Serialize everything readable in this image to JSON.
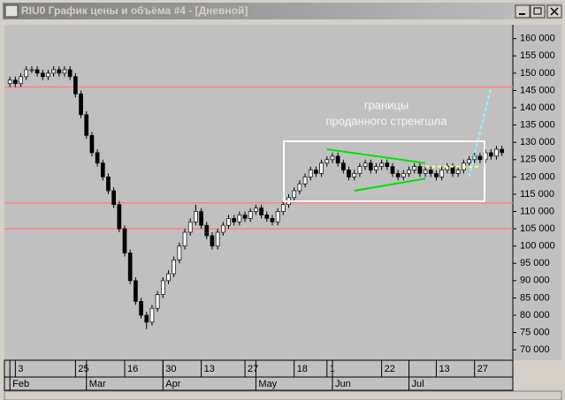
{
  "window": {
    "title": "RIU0 График цены и объёма #4 - [Дневной]"
  },
  "chart_data": {
    "type": "candlestick",
    "open": [
      147000,
      148000,
      147000,
      149000,
      151000,
      151000,
      150000,
      149000,
      150000,
      151000,
      150000,
      151000,
      149000,
      144000,
      138000,
      132000,
      127000,
      124000,
      120000,
      116000,
      112000,
      105000,
      98000,
      90000,
      84000,
      80000,
      78000,
      82000,
      86000,
      90000,
      92000,
      96000,
      100000,
      104000,
      107000,
      110000,
      106000,
      103000,
      100000,
      104000,
      106000,
      108000,
      107000,
      109000,
      108000,
      110000,
      111000,
      109000,
      108000,
      107000,
      110000,
      112000,
      114000,
      116000,
      118000,
      120000,
      122000,
      121000,
      124000,
      125000,
      126000,
      124000,
      122000,
      120000,
      121000,
      123000,
      124000,
      122000,
      123000,
      124000,
      123000,
      121000,
      120000,
      121000,
      122000,
      123000,
      121000,
      122000,
      121000,
      120000,
      122000,
      123000,
      121000,
      122000,
      124000,
      125000,
      126000,
      125000,
      127000,
      126000,
      128000
    ],
    "high": [
      149000,
      149000,
      150000,
      152000,
      152000,
      152000,
      151000,
      151000,
      152000,
      152000,
      152000,
      152000,
      150000,
      145000,
      139000,
      133000,
      128000,
      125000,
      121000,
      117000,
      113000,
      106000,
      99000,
      91000,
      85000,
      81000,
      83000,
      87000,
      91000,
      93000,
      97000,
      101000,
      105000,
      108000,
      112000,
      111000,
      107000,
      104000,
      105000,
      107000,
      109000,
      109000,
      110000,
      110000,
      111000,
      112000,
      112000,
      110000,
      109000,
      111000,
      113000,
      115000,
      117000,
      119000,
      121000,
      123000,
      123000,
      125000,
      126000,
      127000,
      127000,
      125000,
      123000,
      122000,
      124000,
      125000,
      125000,
      124000,
      125000,
      125000,
      124000,
      122000,
      122000,
      123000,
      124000,
      124000,
      123000,
      123000,
      122000,
      123000,
      124000,
      124000,
      123000,
      125000,
      126000,
      127000,
      127000,
      128000,
      128000,
      129000,
      129000
    ],
    "low": [
      146000,
      146000,
      146000,
      148000,
      150000,
      149000,
      148000,
      148000,
      149000,
      149000,
      149000,
      148000,
      143000,
      137000,
      131000,
      126000,
      123000,
      119000,
      115000,
      111000,
      104000,
      97000,
      89000,
      83000,
      79000,
      76000,
      77000,
      81000,
      85000,
      89000,
      91000,
      95000,
      99000,
      103000,
      106000,
      105000,
      102000,
      99000,
      99000,
      103000,
      105000,
      106000,
      106000,
      107000,
      107000,
      109000,
      108000,
      107000,
      106000,
      106000,
      109000,
      111000,
      113000,
      115000,
      117000,
      119000,
      120000,
      120000,
      123000,
      124000,
      123000,
      121000,
      119000,
      119000,
      120000,
      122000,
      121000,
      121000,
      122000,
      122000,
      120000,
      119000,
      119000,
      120000,
      121000,
      120000,
      120000,
      120000,
      119000,
      119000,
      121000,
      120000,
      120000,
      121000,
      123000,
      124000,
      124000,
      124000,
      125000,
      125000,
      126000
    ],
    "close": [
      148000,
      147000,
      149000,
      151000,
      151000,
      150000,
      149000,
      150000,
      151000,
      150000,
      151000,
      149000,
      144000,
      138000,
      132000,
      127000,
      124000,
      120000,
      116000,
      112000,
      105000,
      98000,
      90000,
      84000,
      80000,
      78000,
      82000,
      86000,
      90000,
      92000,
      96000,
      100000,
      104000,
      107000,
      110000,
      106000,
      103000,
      100000,
      104000,
      106000,
      108000,
      107000,
      109000,
      108000,
      110000,
      111000,
      109000,
      108000,
      107000,
      110000,
      112000,
      114000,
      116000,
      118000,
      120000,
      122000,
      121000,
      124000,
      125000,
      126000,
      124000,
      122000,
      120000,
      121000,
      123000,
      124000,
      122000,
      123000,
      124000,
      123000,
      121000,
      120000,
      121000,
      122000,
      123000,
      121000,
      122000,
      121000,
      120000,
      122000,
      123000,
      121000,
      122000,
      124000,
      125000,
      126000,
      125000,
      127000,
      126000,
      128000,
      127000
    ],
    "xlim": [
      -1,
      92
    ],
    "ylim": [
      68000,
      163500
    ],
    "yticks": [
      {
        "value": 70000,
        "label": "70 000"
      },
      {
        "value": 75000,
        "label": "75 000"
      },
      {
        "value": 80000,
        "label": "80 000"
      },
      {
        "value": 85000,
        "label": "85 000"
      },
      {
        "value": 90000,
        "label": "90 000"
      },
      {
        "value": 95000,
        "label": "95 000"
      },
      {
        "value": 100000,
        "label": "100 000"
      },
      {
        "value": 105000,
        "label": "105 000"
      },
      {
        "value": 110000,
        "label": "110 000"
      },
      {
        "value": 115000,
        "label": "115 000"
      },
      {
        "value": 120000,
        "label": "120 000"
      },
      {
        "value": 125000,
        "label": "125 000"
      },
      {
        "value": 130000,
        "label": "130 000"
      },
      {
        "value": 135000,
        "label": "135 000"
      },
      {
        "value": 140000,
        "label": "140 000"
      },
      {
        "value": 145000,
        "label": "145 000"
      },
      {
        "value": 150000,
        "label": "150 000"
      },
      {
        "value": 155000,
        "label": "155 000"
      },
      {
        "value": 160000,
        "label": "160 000"
      }
    ],
    "xticks": [
      {
        "value": 1,
        "label": "3"
      },
      {
        "value": 12,
        "label": "25"
      },
      {
        "value": 21,
        "label": "16"
      },
      {
        "value": 28,
        "label": "30"
      },
      {
        "value": 35,
        "label": "13"
      },
      {
        "value": 43,
        "label": "27"
      },
      {
        "value": 52,
        "label": "18"
      },
      {
        "value": 58,
        "label": "1"
      },
      {
        "value": 68,
        "label": "22"
      },
      {
        "value": 78,
        "label": "13"
      },
      {
        "value": 85,
        "label": "27"
      }
    ],
    "months": [
      {
        "value": 0,
        "label": "Feb"
      },
      {
        "value": 14,
        "label": "Mar"
      },
      {
        "value": 28,
        "label": "Apr"
      },
      {
        "value": 45,
        "label": "May"
      },
      {
        "value": 59,
        "label": "Jun"
      },
      {
        "value": 73,
        "label": "Jul"
      }
    ],
    "levels": [
      {
        "value": 146000,
        "color": "#ff8080"
      },
      {
        "value": 112500,
        "color": "#ff8080"
      },
      {
        "value": 105000,
        "color": "#ff8080"
      }
    ],
    "trendlines": [
      {
        "x": [
          58,
          76
        ],
        "y": [
          128000,
          124000
        ],
        "color": "#00e000",
        "dash": false
      },
      {
        "x": [
          63,
          76
        ],
        "y": [
          116000,
          119500
        ],
        "color": "#00e000",
        "dash": false
      },
      {
        "x": [
          76,
          86
        ],
        "y": [
          123000,
          123000
        ],
        "color": "#ffff80",
        "dash": true
      },
      {
        "x": [
          84,
          88
        ],
        "y": [
          120000,
          146000
        ],
        "color": "#80ffff",
        "dash": true
      }
    ],
    "annotation": [
      "границы",
      "проданного стренгшла"
    ],
    "up_color": "#ffffff",
    "down_color": "#000000"
  }
}
